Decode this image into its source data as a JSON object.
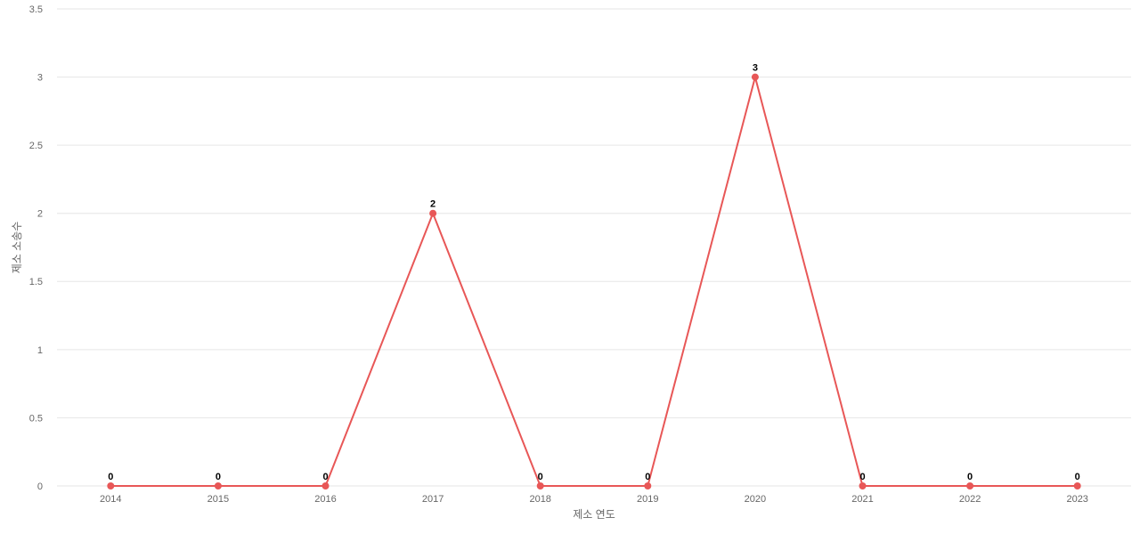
{
  "chart_data": {
    "type": "line",
    "x_label": "제소 연도",
    "y_label": "제소 소송수",
    "categories": [
      "2014",
      "2015",
      "2016",
      "2017",
      "2018",
      "2019",
      "2020",
      "2021",
      "2022",
      "2023"
    ],
    "series": [
      {
        "color": "#e85757",
        "values": [
          0,
          0,
          0,
          2,
          0,
          0,
          3,
          0,
          0,
          0
        ]
      }
    ],
    "ylim": [
      0,
      3.5
    ],
    "yticks": [
      0,
      0.5,
      1,
      1.5,
      2,
      2.5,
      3,
      3.5
    ],
    "grid": true
  }
}
